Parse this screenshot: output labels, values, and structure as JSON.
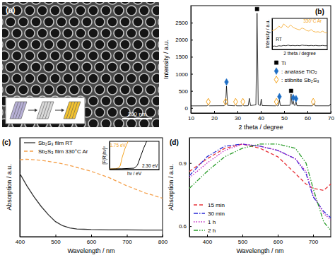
{
  "chart_data": [
    {
      "type": "image",
      "title": "(a)",
      "annotations": [
        {
          "text": "200 nm"
        }
      ]
    },
    {
      "type": "line",
      "title": "(b)",
      "x_label": "2 theta / degree",
      "y_label": "Intensity / a.u.",
      "xlim": [
        10,
        70
      ],
      "xticks": [
        10,
        20,
        30,
        40,
        50,
        60,
        70
      ],
      "ylim": [
        -150,
        3000
      ],
      "yticks": [
        0,
        500,
        1000,
        1500,
        2000,
        2500
      ],
      "legend": "center right",
      "series": [
        {
          "color": "#000000",
          "line_style": "solid",
          "x": [
            10,
            17,
            17.5,
            18,
            24.3,
            24.9,
            25.3,
            25.8,
            28.8,
            29.2,
            29.6,
            31.9,
            32.3,
            32.7,
            34.6,
            35.1,
            35.6,
            37.9,
            38.4,
            38.9,
            39.8,
            40.2,
            40.6,
            46.3,
            46.7,
            47.1,
            47.6,
            48,
            48.4,
            52.5,
            53,
            53.4,
            53.9,
            54.3,
            54.7,
            55.1,
            55.5,
            62.1,
            62.5,
            62.9,
            63.3,
            69.4,
            69.9,
            70
          ],
          "values": [
            60,
            62,
            95,
            62,
            65,
            110,
            640,
            75,
            62,
            95,
            62,
            62,
            90,
            62,
            65,
            280,
            70,
            90,
            2780,
            100,
            70,
            260,
            68,
            62,
            85,
            62,
            70,
            230,
            70,
            75,
            410,
            110,
            200,
            80,
            75,
            180,
            65,
            62,
            90,
            140,
            62,
            62,
            120,
            90
          ]
        },
        {
          "name": "Ti",
          "type": "scatter",
          "marker": "square",
          "color": "#000000",
          "x": [
            38.4,
            53
          ],
          "values": [
            2900,
            500
          ]
        },
        {
          "name": ": anatase TiO₂",
          "type": "scatter",
          "marker": "diamond",
          "color": "#1f6fc5",
          "x": [
            25.3,
            48,
            53.9,
            55.1
          ],
          "values": [
            760,
            330,
            300,
            270
          ]
        },
        {
          "name": ": stibnite Sb₂S₃",
          "type": "scatter",
          "marker": "open diamond",
          "color": "#f5a623",
          "x": [
            17.5,
            24.9,
            29.2,
            32.3,
            46.7,
            62.5
          ],
          "values": [
            180,
            180,
            180,
            180,
            180,
            180
          ]
        }
      ]
    },
    {
      "type": "line",
      "x_label": "2 theta / degree",
      "y_label": "Intensity / a.u.",
      "tick_labels": false,
      "xlim": [
        10,
        70
      ],
      "ylim": [
        0,
        10
      ],
      "x": [
        10,
        12.5,
        15,
        17.5,
        20,
        22.5,
        25,
        27.5,
        30,
        32.5,
        35,
        37.5,
        40,
        42.5,
        45,
        47.5,
        50,
        52.5,
        55,
        57.5,
        60,
        62.5,
        65,
        67.5,
        70
      ],
      "series": [
        {
          "color": "#f5a623",
          "line_style": "solid",
          "values": [
            6,
            6.3,
            6.8,
            7.5,
            6.9,
            8.2,
            7.6,
            7,
            7.9,
            7.2,
            6.8,
            6.5,
            6.3,
            6.9,
            6.6,
            6.1,
            5.9,
            6.4,
            5.8,
            5.6,
            5.7,
            5.5,
            5.9,
            5.4,
            5.3
          ]
        },
        {
          "color": "#000000",
          "line_style": "solid",
          "values": [
            1,
            1.1,
            1,
            1.2,
            1.1,
            1.3,
            1.2,
            1.4,
            1.2,
            1.3,
            1.2,
            1.3,
            1.2,
            1.4,
            1.3,
            1.3,
            1.2,
            1.3,
            1.2,
            1.3,
            1.2,
            1.2,
            1.3,
            1.2,
            1.2
          ]
        }
      ],
      "annotations": [
        {
          "text": "330°C Ar",
          "x": 44,
          "y": 8.6,
          "color": "#f5a623"
        },
        {
          "text": "RT",
          "x": 14,
          "y": 2.8,
          "color": "#000000"
        }
      ]
    },
    {
      "type": "line",
      "title": "(c)",
      "x_label": "Wavelength / nm",
      "y_label": "Absorption / a.u.",
      "tick_labels": "x",
      "xlim": [
        400,
        800
      ],
      "xticks": [
        400,
        500,
        600,
        700,
        800
      ],
      "ylim": [
        0,
        3.6
      ],
      "legend": "upper left",
      "x": [
        400,
        420,
        440,
        460,
        480,
        500,
        520,
        540,
        560,
        580,
        600,
        650,
        700,
        750,
        800
      ],
      "series": [
        {
          "name": "Sb₂S₃ film RT",
          "color": "#333333",
          "line_style": "solid",
          "values": [
            2.3,
            1.85,
            1.45,
            1.1,
            0.8,
            0.55,
            0.4,
            0.32,
            0.28,
            0.27,
            0.26,
            0.25,
            0.25,
            0.24,
            0.24
          ]
        },
        {
          "name": "Sb₂S₃ film 330°C Ar",
          "color": "#f5a04a",
          "line_style": "dashed",
          "values": [
            2.8,
            2.82,
            2.8,
            2.78,
            2.74,
            2.7,
            2.65,
            2.59,
            2.52,
            2.45,
            2.38,
            2.15,
            1.85,
            1.6,
            1.4
          ]
        }
      ]
    },
    {
      "type": "line",
      "x_label": "hν / eV",
      "y_label": "[F(R)hν]²",
      "tick_labels": false,
      "xlim": [
        1.4,
        3.0
      ],
      "ylim": [
        0,
        1
      ],
      "series": [
        {
          "color": "#f5a623",
          "line_style": "solid",
          "x": [
            1.4,
            1.6,
            1.7,
            1.75,
            1.8,
            1.9,
            2.0
          ],
          "values": [
            0.02,
            0.03,
            0.06,
            0.15,
            0.4,
            0.75,
            1.0
          ]
        },
        {
          "color": "#000000",
          "line_style": "solid",
          "x": [
            1.4,
            1.8,
            2.2,
            2.3,
            2.4,
            2.5,
            2.6
          ],
          "values": [
            0.02,
            0.03,
            0.05,
            0.15,
            0.45,
            0.75,
            1.0
          ]
        }
      ],
      "annotations": [
        {
          "text": "1.75 eV",
          "x": 1.41,
          "y": 0.8,
          "color": "#f5a623"
        },
        {
          "text": "2.30 eV",
          "x": 2.45,
          "y": 0.08,
          "color": "#000000"
        }
      ]
    },
    {
      "type": "line",
      "title": "(d)",
      "x_label": "Wavelength / nm",
      "y_label": "Absorption / a.u.",
      "xlim": [
        350,
        750
      ],
      "xticks": [
        400,
        500,
        600,
        700
      ],
      "ylim": [
        0.55,
        1.02
      ],
      "yticks": [
        0.6,
        0.9
      ],
      "legend": "lower left",
      "x": [
        350,
        400,
        450,
        500,
        550,
        600,
        650,
        680,
        700,
        730,
        750
      ],
      "series": [
        {
          "name": "15 min",
          "color": "#e8333a",
          "line_style": "dashed",
          "values": [
            0.86,
            0.92,
            0.97,
            0.99,
            0.97,
            0.93,
            0.85,
            0.8,
            0.78,
            0.77,
            0.8
          ]
        },
        {
          "name": "30 min",
          "color": "#2b2bd6",
          "line_style": "dashdot",
          "values": [
            0.84,
            0.93,
            0.98,
            0.99,
            0.98,
            0.96,
            0.92,
            0.85,
            0.74,
            0.67,
            0.64
          ]
        },
        {
          "name": "1 h",
          "color": "#c020c0",
          "line_style": "dotted",
          "values": [
            0.83,
            0.9,
            0.96,
            0.99,
            0.98,
            0.96,
            0.92,
            0.86,
            0.75,
            0.66,
            0.63
          ]
        },
        {
          "name": "2 h",
          "color": "#2a9d2a",
          "line_style": "dashdotdot",
          "values": [
            0.78,
            0.86,
            0.93,
            0.97,
            0.99,
            0.99,
            0.97,
            0.9,
            0.78,
            0.62,
            0.58
          ]
        }
      ]
    }
  ]
}
